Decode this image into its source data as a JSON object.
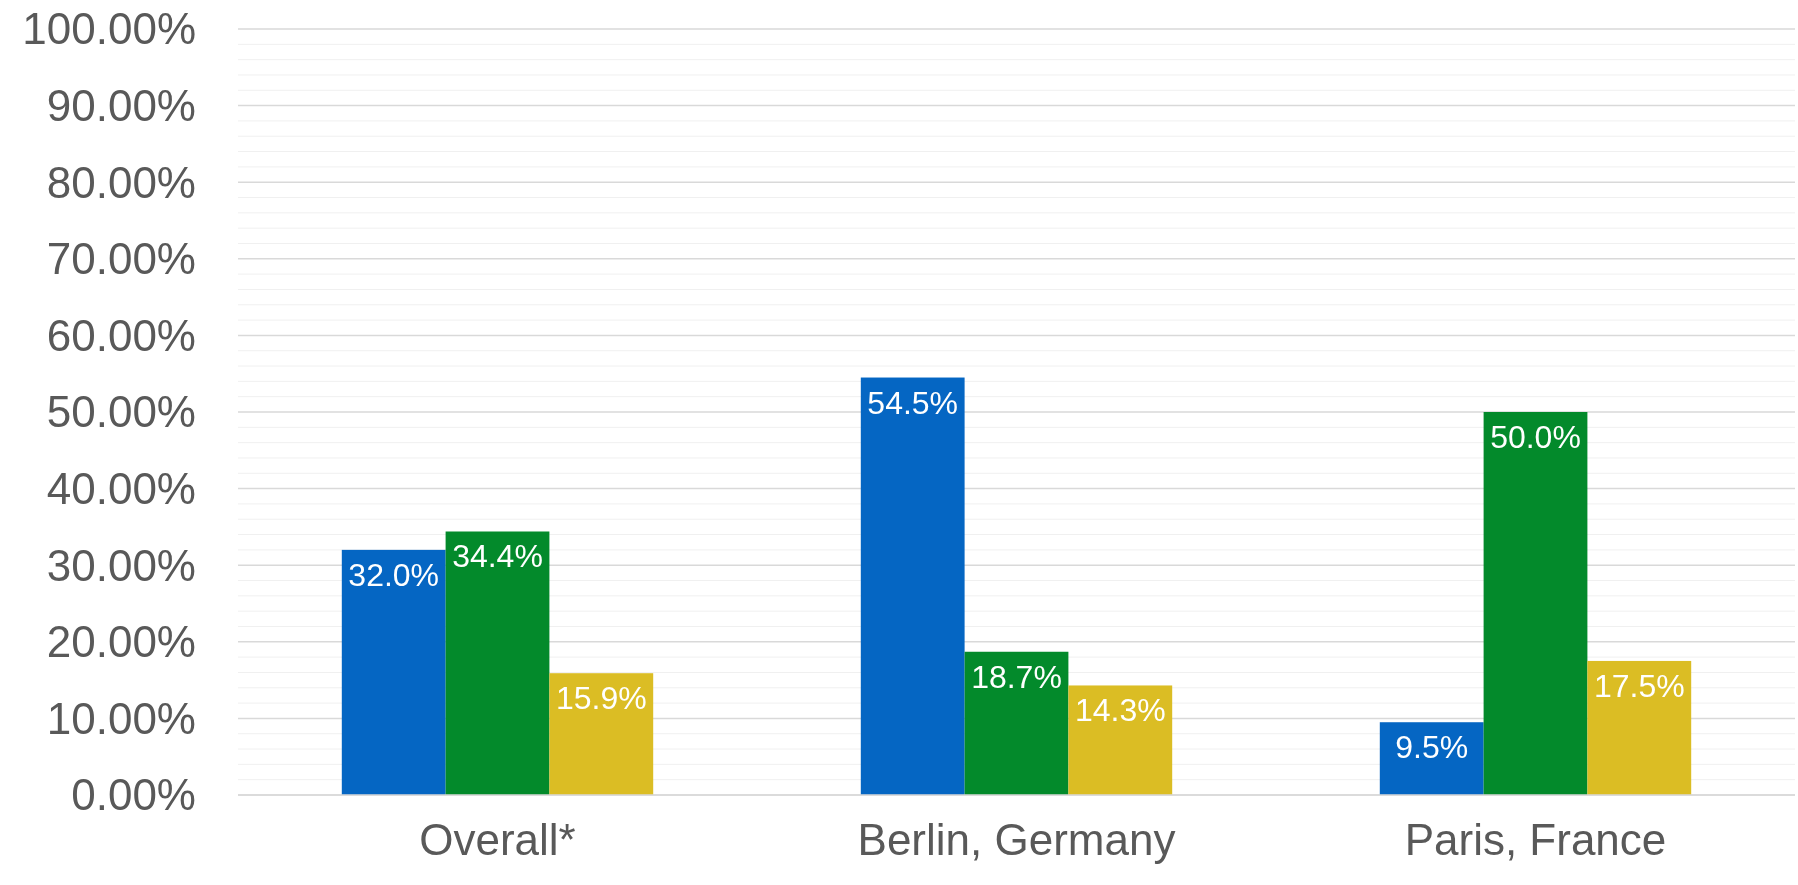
{
  "chart_data": {
    "type": "bar",
    "categories": [
      "Overall*",
      "Berlin, Germany",
      "Paris, France"
    ],
    "series": [
      {
        "color": "#0566c3",
        "values": [
          32.0,
          54.5,
          9.5
        ]
      },
      {
        "color": "#038a2b",
        "values": [
          34.4,
          18.7,
          50.0
        ]
      },
      {
        "color": "#dbbd24",
        "values": [
          15.9,
          14.3,
          17.5
        ]
      }
    ],
    "value_labels": [
      [
        "32.0%",
        "54.5%",
        "9.5%"
      ],
      [
        "34.4%",
        "18.7%",
        "50.0%"
      ],
      [
        "15.9%",
        "14.3%",
        "17.5%"
      ]
    ],
    "ylim": [
      0,
      100
    ],
    "yticks": [
      {
        "value": 0,
        "label": "0.00%"
      },
      {
        "value": 2,
        "label": null
      },
      {
        "value": 4,
        "label": null
      },
      {
        "value": 6,
        "label": null
      },
      {
        "value": 8,
        "label": null
      },
      {
        "value": 10,
        "label": "10.00%"
      },
      {
        "value": 12,
        "label": null
      },
      {
        "value": 14,
        "label": null
      },
      {
        "value": 16,
        "label": null
      },
      {
        "value": 18,
        "label": null
      },
      {
        "value": 20,
        "label": "20.00%"
      },
      {
        "value": 22,
        "label": null
      },
      {
        "value": 24,
        "label": null
      },
      {
        "value": 26,
        "label": null
      },
      {
        "value": 28,
        "label": null
      },
      {
        "value": 30,
        "label": "30.00%"
      },
      {
        "value": 32,
        "label": null
      },
      {
        "value": 34,
        "label": null
      },
      {
        "value": 36,
        "label": null
      },
      {
        "value": 38,
        "label": null
      },
      {
        "value": 40,
        "label": "40.00%"
      },
      {
        "value": 42,
        "label": null
      },
      {
        "value": 44,
        "label": null
      },
      {
        "value": 46,
        "label": null
      },
      {
        "value": 48,
        "label": null
      },
      {
        "value": 50,
        "label": "50.00%"
      },
      {
        "value": 52,
        "label": null
      },
      {
        "value": 54,
        "label": null
      },
      {
        "value": 56,
        "label": null
      },
      {
        "value": 58,
        "label": null
      },
      {
        "value": 60,
        "label": "60.00%"
      },
      {
        "value": 62,
        "label": null
      },
      {
        "value": 64,
        "label": null
      },
      {
        "value": 66,
        "label": null
      },
      {
        "value": 68,
        "label": null
      },
      {
        "value": 70,
        "label": "70.00%"
      },
      {
        "value": 72,
        "label": null
      },
      {
        "value": 74,
        "label": null
      },
      {
        "value": 76,
        "label": null
      },
      {
        "value": 78,
        "label": null
      },
      {
        "value": 80,
        "label": "80.00%"
      },
      {
        "value": 82,
        "label": null
      },
      {
        "value": 84,
        "label": null
      },
      {
        "value": 86,
        "label": null
      },
      {
        "value": 88,
        "label": null
      },
      {
        "value": 90,
        "label": "90.00%"
      },
      {
        "value": 92,
        "label": null
      },
      {
        "value": 94,
        "label": null
      },
      {
        "value": 96,
        "label": null
      },
      {
        "value": 98,
        "label": null
      },
      {
        "value": 100,
        "label": "100.00%"
      }
    ],
    "grid": "y"
  }
}
